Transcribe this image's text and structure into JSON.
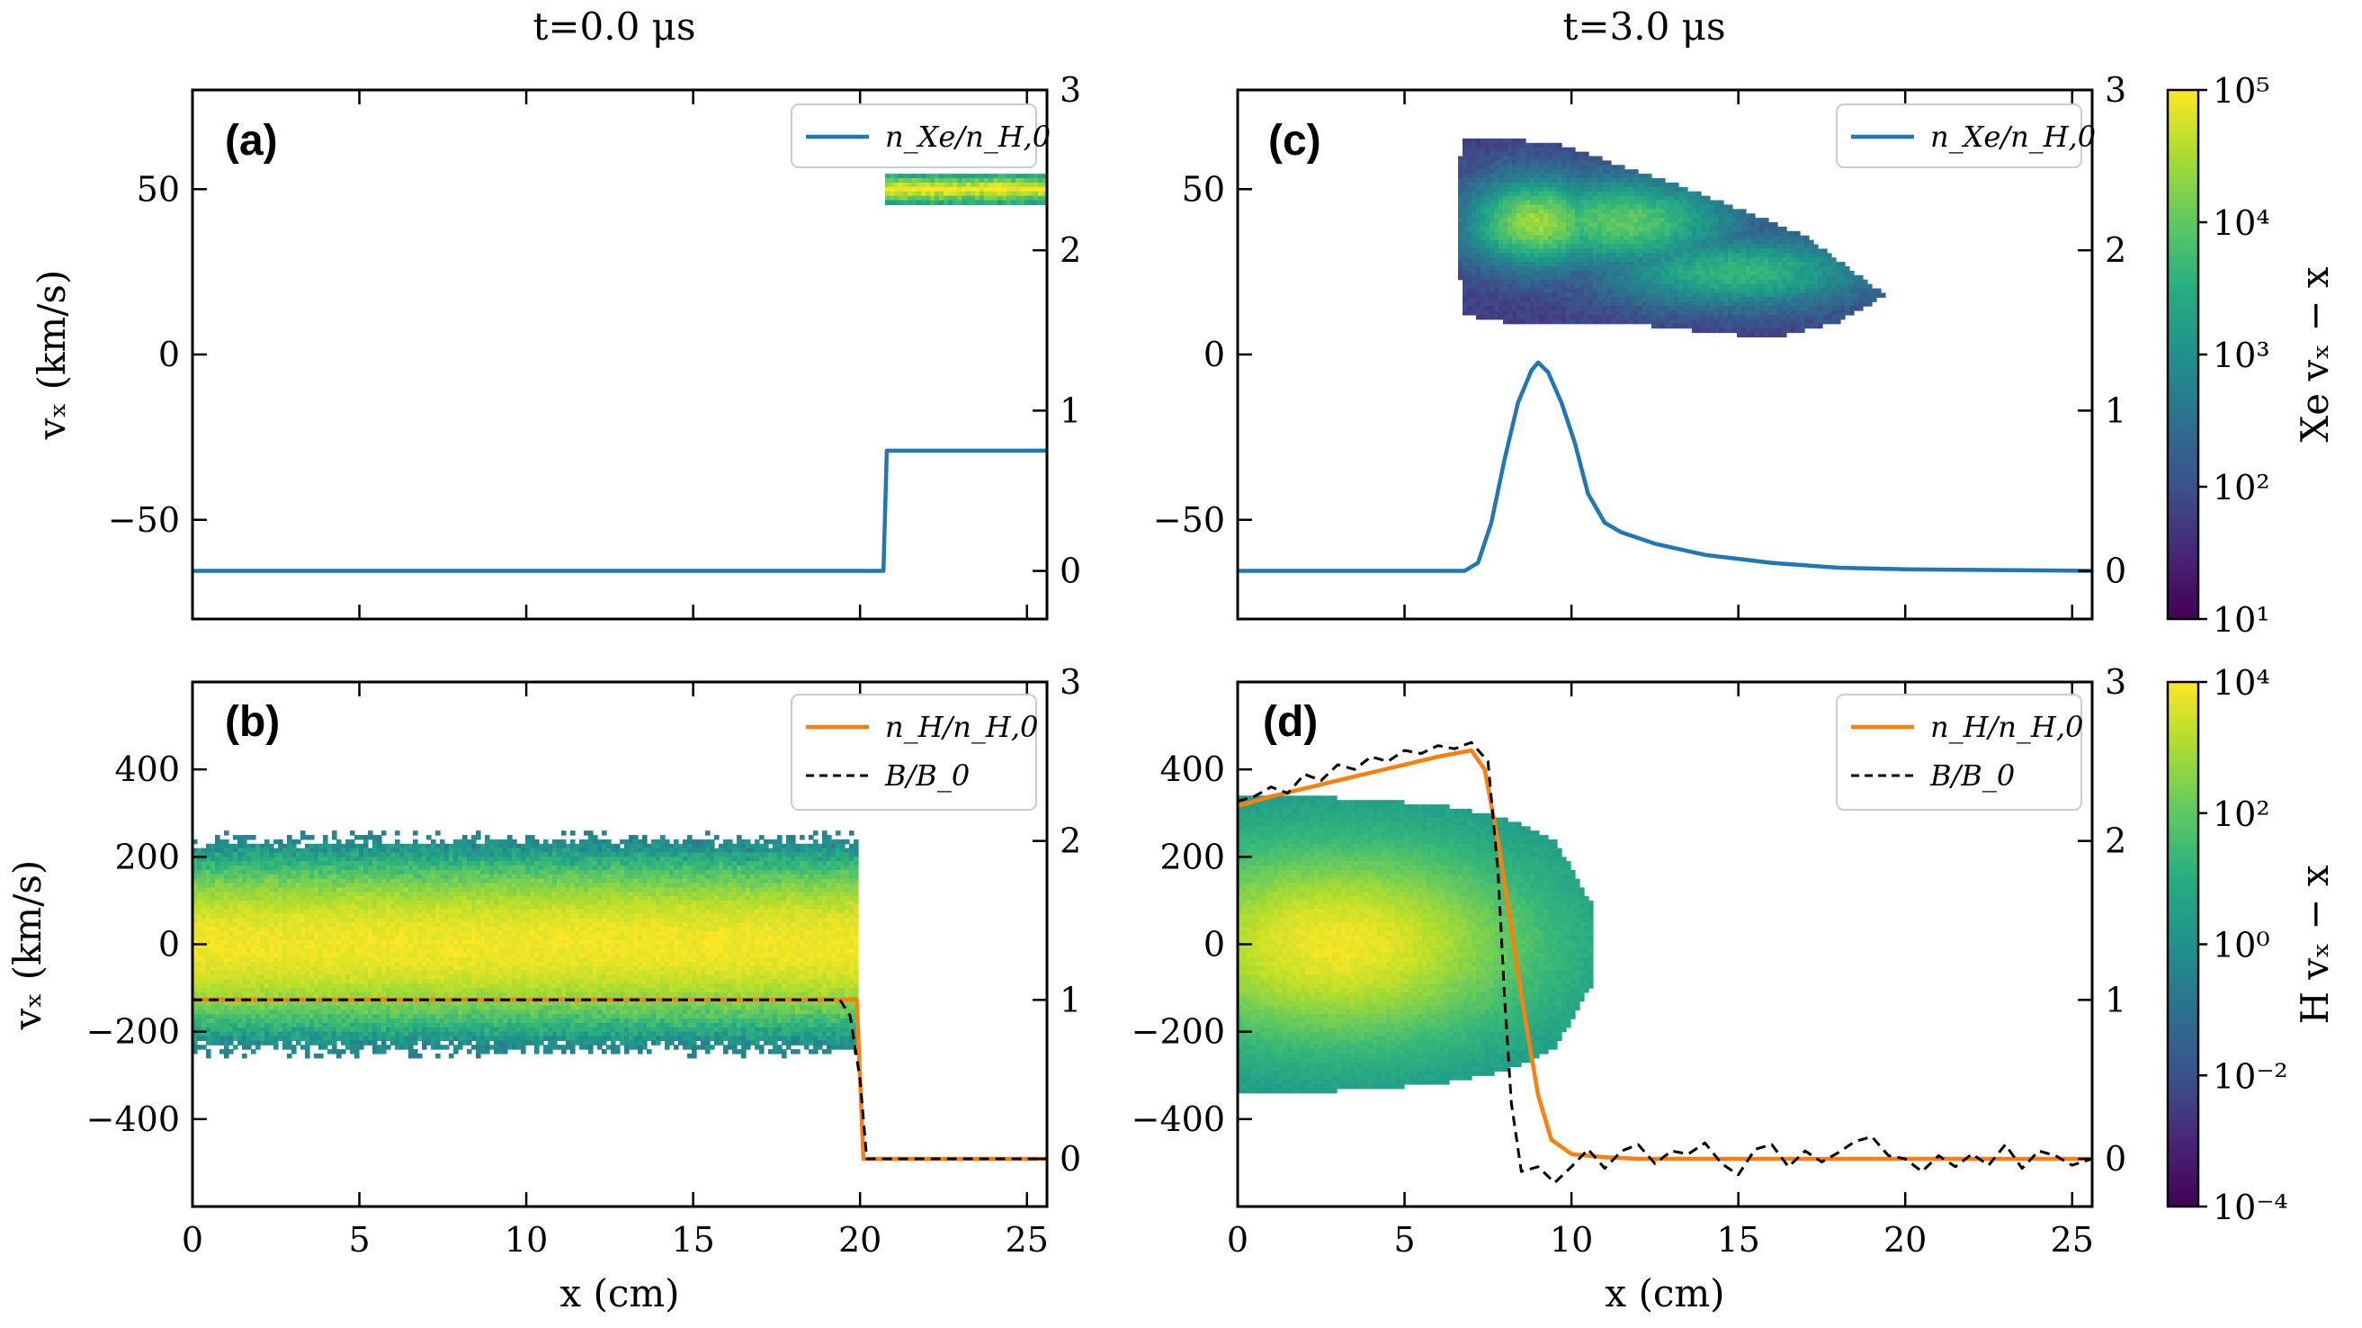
{
  "figure": {
    "column_titles": [
      "t=0.0 μs",
      "t=3.0 μs"
    ],
    "xlabel": "x (cm)",
    "ylabel": "vₓ (km/s)"
  },
  "colorbars": [
    {
      "label": "Xe vₓ − x",
      "colormap": "viridis",
      "scale": "log",
      "tick_labels": [
        "10¹",
        "10²",
        "10³",
        "10⁴",
        "10⁵"
      ]
    },
    {
      "label": "H vₓ − x",
      "colormap": "viridis",
      "scale": "log",
      "tick_labels": [
        "10⁻⁴",
        "10⁻²",
        "10⁰",
        "10²",
        "10⁴"
      ]
    }
  ],
  "colors": {
    "n_xe": "#1f77b4",
    "n_h": "#ff7f0e",
    "b_field": "#000000",
    "viridis": [
      "#440154",
      "#3b528b",
      "#21918c",
      "#5ec962",
      "#fde725"
    ]
  },
  "chart_data": [
    {
      "panel": "(a)",
      "type": "heatmap",
      "column_title": "t=0.0 μs",
      "xlim": [
        0,
        25.6
      ],
      "ylim": [
        -80,
        80
      ],
      "y2lim": [
        -0.3,
        3
      ],
      "x_ticks": [
        0,
        5,
        10,
        15,
        20,
        25
      ],
      "y_ticks": [
        -50,
        0,
        50
      ],
      "y2_ticks": [
        0,
        1,
        2,
        3
      ],
      "show_xtick_labels": false,
      "legend": {
        "placement": "top-right",
        "entries": [
          "n_Xe/n_H,0"
        ]
      },
      "heatmap": {
        "description": "Xe phase-space density",
        "blobs": [
          {
            "x_range": [
              20.8,
              25.6
            ],
            "v_center": 50,
            "v_halfwidth": 5,
            "peak": 5
          }
        ]
      },
      "series": [
        {
          "name": "n_Xe/n_H,0",
          "axis": "right",
          "color": "#1f77b4",
          "style": "solid",
          "x": [
            0,
            20.7,
            20.8,
            25.6
          ],
          "y": [
            0,
            0,
            0.75,
            0.75
          ]
        }
      ]
    },
    {
      "panel": "(b)",
      "type": "heatmap",
      "column_title": "",
      "xlim": [
        0,
        25.6
      ],
      "ylim": [
        -600,
        600
      ],
      "y2lim": [
        -0.3,
        3
      ],
      "x_ticks": [
        0,
        5,
        10,
        15,
        20,
        25
      ],
      "y_ticks": [
        -400,
        -200,
        0,
        200,
        400
      ],
      "y2_ticks": [
        0,
        1,
        2,
        3
      ],
      "show_xtick_labels": true,
      "legend": {
        "placement": "top-right",
        "entries": [
          "n_H/n_H,0",
          "B/B_0"
        ]
      },
      "heatmap": {
        "description": "H phase-space density",
        "blobs": [
          {
            "x_range": [
              0,
              20
            ],
            "v_center": 0,
            "v_halfwidth": 240,
            "peak": 4
          }
        ]
      },
      "series": [
        {
          "name": "n_H/n_H,0",
          "axis": "right",
          "color": "#ff7f0e",
          "style": "solid",
          "x": [
            0,
            19.9,
            20.1,
            25.6
          ],
          "y": [
            1,
            1,
            0,
            0
          ]
        },
        {
          "name": "B/B_0",
          "axis": "right",
          "color": "#000000",
          "style": "dashed",
          "x": [
            0,
            19.4,
            19.7,
            20.0,
            20.2,
            25.6
          ],
          "y": [
            1,
            1,
            0.9,
            0.5,
            0,
            0
          ]
        }
      ]
    },
    {
      "panel": "(c)",
      "type": "heatmap",
      "column_title": "t=3.0 μs",
      "xlim": [
        0,
        25.6
      ],
      "ylim": [
        -80,
        80
      ],
      "y2lim": [
        -0.3,
        3
      ],
      "x_ticks": [
        0,
        5,
        10,
        15,
        20,
        25
      ],
      "y_ticks": [
        -50,
        0,
        50
      ],
      "y2_ticks": [
        0,
        1,
        2,
        3
      ],
      "show_xtick_labels": false,
      "legend": {
        "placement": "top-right",
        "entries": [
          "n_Xe/n_H,0"
        ]
      },
      "heatmap": {
        "description": "Xe phase-space density",
        "polygon": [
          [
            6.7,
            66
          ],
          [
            9.5,
            64
          ],
          [
            13,
            52
          ],
          [
            17,
            36
          ],
          [
            19.4,
            18
          ],
          [
            18,
            10
          ],
          [
            16,
            5
          ],
          [
            11,
            10
          ],
          [
            8,
            10
          ],
          [
            6.7,
            12
          ],
          [
            6.6,
            45
          ]
        ],
        "blobs": [
          {
            "x": 9,
            "v": 40,
            "sx": 1.6,
            "sv": 10,
            "peak": 4.5
          },
          {
            "x": 11.5,
            "v": 40,
            "sx": 2.5,
            "sv": 10,
            "peak": 3.8
          },
          {
            "x": 15,
            "v": 25,
            "sx": 3,
            "sv": 8,
            "peak": 3.2
          }
        ]
      },
      "series": [
        {
          "name": "n_Xe/n_H,0",
          "axis": "right",
          "color": "#1f77b4",
          "style": "solid",
          "x": [
            0,
            6.8,
            7.2,
            7.6,
            8.0,
            8.4,
            8.8,
            9.0,
            9.3,
            9.7,
            10.1,
            10.5,
            11.0,
            11.5,
            12.5,
            14,
            16,
            18,
            20,
            25.6
          ],
          "y": [
            0,
            0,
            0.05,
            0.3,
            0.7,
            1.05,
            1.25,
            1.3,
            1.24,
            1.05,
            0.8,
            0.48,
            0.3,
            0.24,
            0.17,
            0.1,
            0.05,
            0.02,
            0.01,
            0
          ]
        }
      ]
    },
    {
      "panel": "(d)",
      "type": "heatmap",
      "column_title": "",
      "xlim": [
        0,
        25.6
      ],
      "ylim": [
        -600,
        600
      ],
      "y2lim": [
        -0.3,
        3
      ],
      "x_ticks": [
        0,
        5,
        10,
        15,
        20,
        25
      ],
      "y_ticks": [
        -400,
        -200,
        0,
        200,
        400
      ],
      "y2_ticks": [
        0,
        1,
        2,
        3
      ],
      "show_xtick_labels": true,
      "legend": {
        "placement": "top-right",
        "entries": [
          "n_H/n_H,0",
          "B/B_0"
        ]
      },
      "heatmap": {
        "description": "H phase-space density",
        "polygon": [
          [
            0,
            340
          ],
          [
            3,
            335
          ],
          [
            6,
            320
          ],
          [
            8,
            290
          ],
          [
            9.5,
            240
          ],
          [
            10.7,
            80
          ],
          [
            10.7,
            -80
          ],
          [
            9.5,
            -240
          ],
          [
            8,
            -290
          ],
          [
            6,
            -320
          ],
          [
            3,
            -335
          ],
          [
            0,
            -340
          ]
        ],
        "blobs": [
          {
            "x": 3,
            "v": 0,
            "sx": 4.5,
            "sv": 170,
            "peak": 4
          }
        ]
      },
      "series": [
        {
          "name": "n_H/n_H,0",
          "axis": "right",
          "color": "#ff7f0e",
          "style": "solid",
          "x": [
            0,
            1,
            2,
            3,
            4,
            5,
            6,
            7,
            7.4,
            7.8,
            8.2,
            8.6,
            9.0,
            9.4,
            10,
            11,
            12,
            15,
            20,
            25.6
          ],
          "y": [
            2.22,
            2.28,
            2.33,
            2.38,
            2.43,
            2.48,
            2.53,
            2.57,
            2.45,
            2.0,
            1.45,
            0.9,
            0.4,
            0.12,
            0.03,
            0.01,
            0,
            0,
            0,
            0
          ]
        },
        {
          "name": "B/B_0",
          "axis": "right",
          "color": "#000000",
          "style": "dashed",
          "x": [
            0,
            0.5,
            1,
            1.5,
            2,
            2.5,
            3,
            3.5,
            4,
            4.5,
            5,
            5.5,
            6,
            6.5,
            7,
            7.5,
            7.8,
            8.0,
            8.2,
            8.5,
            9.0,
            9.5,
            10,
            10.5,
            11,
            11.5,
            12,
            12.5,
            13,
            13.5,
            14,
            14.5,
            15,
            15.5,
            16,
            16.5,
            17,
            17.5,
            18,
            18.5,
            19,
            19.5,
            20,
            20.5,
            21,
            21.5,
            22,
            22.5,
            23,
            23.5,
            24,
            24.5,
            25,
            25.6
          ],
          "y": [
            2.25,
            2.28,
            2.34,
            2.3,
            2.42,
            2.38,
            2.48,
            2.45,
            2.53,
            2.5,
            2.57,
            2.55,
            2.6,
            2.58,
            2.62,
            2.5,
            1.8,
            1.0,
            0.35,
            -0.08,
            -0.05,
            -0.15,
            -0.05,
            0.06,
            -0.06,
            0.05,
            0.09,
            -0.03,
            0.05,
            0.03,
            0.1,
            -0.03,
            -0.1,
            0.06,
            0.09,
            -0.05,
            0.05,
            -0.02,
            0.04,
            0.11,
            0.14,
            0.02,
            0.0,
            -0.08,
            0.02,
            -0.05,
            0.03,
            -0.04,
            0.09,
            -0.06,
            0.05,
            0.02,
            -0.04,
            0.0
          ]
        }
      ]
    }
  ]
}
